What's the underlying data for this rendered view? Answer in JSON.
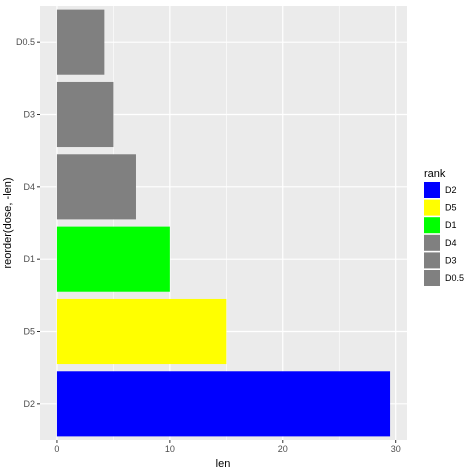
{
  "chart_data": {
    "type": "bar",
    "orientation": "horizontal",
    "categories": [
      "D2",
      "D5",
      "D1",
      "D4",
      "D3",
      "D0.5"
    ],
    "values": [
      29.5,
      15.0,
      10.0,
      7.0,
      5.0,
      4.2
    ],
    "bar_colors": [
      "#0000ff",
      "#ffff00",
      "#00ff00",
      "#808080",
      "#808080",
      "#808080"
    ],
    "xlabel": "len",
    "ylabel": "reorder(dose, -len)",
    "xlim": [
      -1.5,
      31
    ],
    "xticks": [
      0,
      10,
      20,
      30
    ],
    "grid": true,
    "panel_background": "#ebebeb",
    "legend": {
      "title": "rank",
      "placement": "right",
      "entries": [
        {
          "label": "D2",
          "color": "#0000ff"
        },
        {
          "label": "D5",
          "color": "#ffff00"
        },
        {
          "label": "D1",
          "color": "#00ff00"
        },
        {
          "label": "D4",
          "color": "#808080"
        },
        {
          "label": "D3",
          "color": "#808080"
        },
        {
          "label": "D0.5",
          "color": "#808080"
        }
      ]
    }
  }
}
